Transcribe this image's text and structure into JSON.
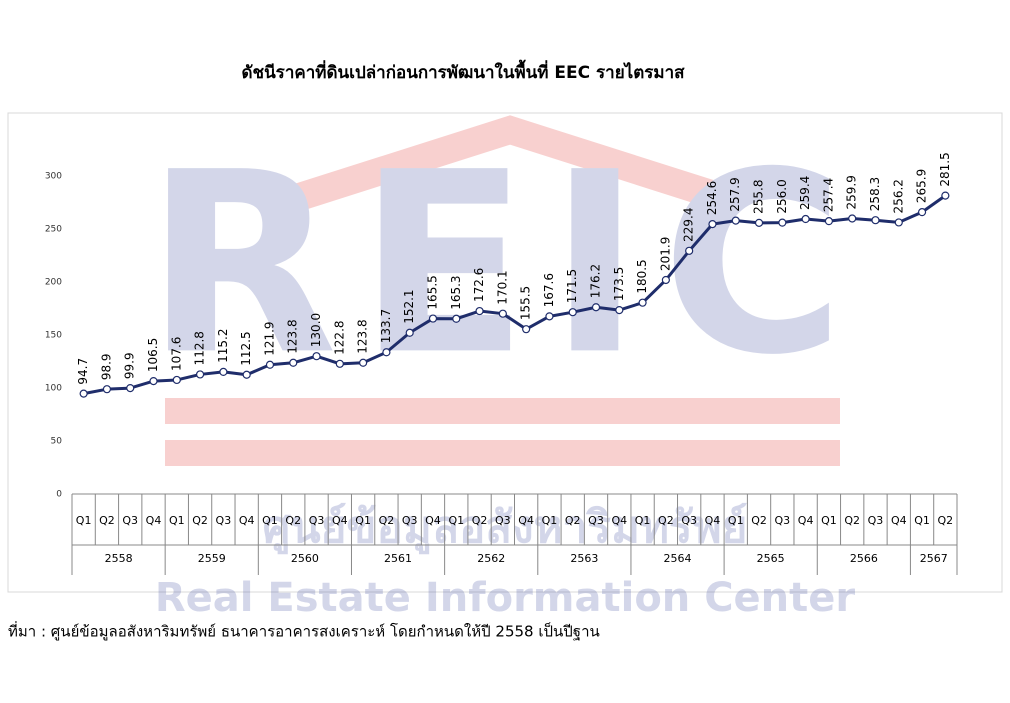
{
  "chart_data": {
    "type": "line",
    "title": "ดัชนีราคาที่ดินเปล่าก่อนการพัฒนาในพื้นที่ EEC รายไตรมาส",
    "groups": [
      {
        "label": "2558",
        "categories": [
          "Q1",
          "Q2",
          "Q3",
          "Q4"
        ]
      },
      {
        "label": "2559",
        "categories": [
          "Q1",
          "Q2",
          "Q3",
          "Q4"
        ]
      },
      {
        "label": "2560",
        "categories": [
          "Q1",
          "Q2",
          "Q3",
          "Q4"
        ]
      },
      {
        "label": "2561",
        "categories": [
          "Q1",
          "Q2",
          "Q3",
          "Q4"
        ]
      },
      {
        "label": "2562",
        "categories": [
          "Q1",
          "Q2",
          "Q3",
          "Q4"
        ]
      },
      {
        "label": "2563",
        "categories": [
          "Q1",
          "Q2",
          "Q3",
          "Q4"
        ]
      },
      {
        "label": "2564",
        "categories": [
          "Q1",
          "Q2",
          "Q3",
          "Q4"
        ]
      },
      {
        "label": "2565",
        "categories": [
          "Q1",
          "Q2",
          "Q3",
          "Q4"
        ]
      },
      {
        "label": "2566",
        "categories": [
          "Q1",
          "Q2",
          "Q3",
          "Q4"
        ]
      },
      {
        "label": "2567",
        "categories": [
          "Q1",
          "Q2"
        ]
      }
    ],
    "values": [
      94.7,
      98.9,
      99.9,
      106.5,
      107.6,
      112.8,
      115.2,
      112.5,
      121.9,
      123.8,
      130.0,
      122.8,
      123.8,
      133.7,
      152.1,
      165.5,
      165.3,
      172.6,
      170.1,
      155.5,
      167.6,
      171.5,
      176.2,
      173.5,
      180.5,
      201.9,
      229.4,
      254.6,
      257.9,
      255.8,
      256.0,
      259.4,
      257.4,
      259.9,
      258.3,
      256.2,
      265.9,
      281.5
    ],
    "value_labels": [
      "94.7",
      "98.9",
      "99.9",
      "106.5",
      "107.6",
      "112.8",
      "115.2",
      "112.5",
      "121.9",
      "123.8",
      "130.0",
      "122.8",
      "123.8",
      "133.7",
      "152.1",
      "165.5",
      "165.3",
      "172.6",
      "170.1",
      "155.5",
      "167.6",
      "171.5",
      "176.2",
      "173.5",
      "180.5",
      "201.9",
      "229.4",
      "254.6",
      "257.9",
      "255.8",
      "256.0",
      "259.4",
      "257.4",
      "259.9",
      "258.3",
      "256.2",
      "265.9",
      "281.5"
    ],
    "color": "#1f2d6b",
    "ylim": [
      0,
      300
    ],
    "yticks": [
      0,
      50,
      100,
      150,
      200,
      250,
      300
    ],
    "source": "ที่มา : ศูนย์ข้อมูลอสังหาริมทรัพย์ ธนาคารอาคารสงเคราะห์  โดยกำหนดให้ปี 2558 เป็นปีฐาน"
  },
  "watermark": {
    "logo": "REIC",
    "thai": "ศูนย์ข้อมูลอสังหาริมทรัพย์",
    "english": "Real Estate Information Center"
  }
}
